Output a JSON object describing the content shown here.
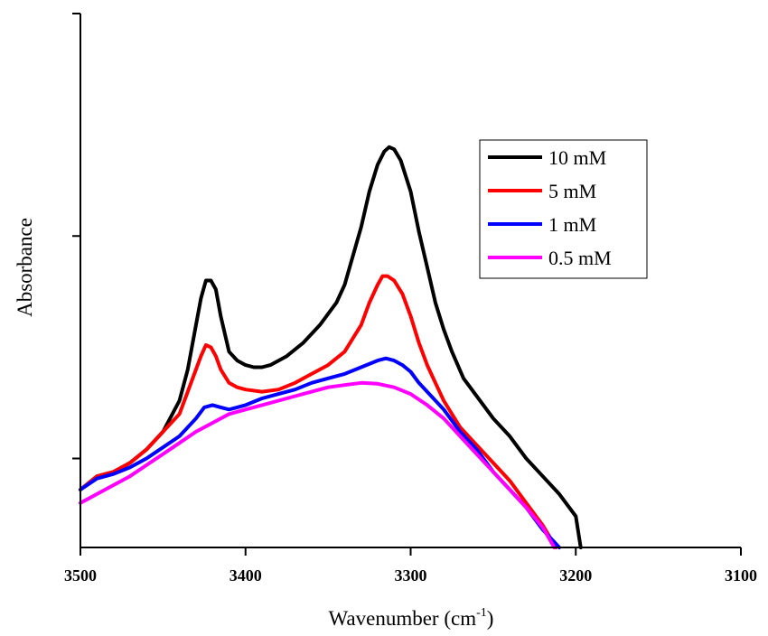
{
  "chart_data": {
    "type": "line",
    "xlabel_main": "Wavenumber (cm",
    "xlabel_sup": "-1",
    "xlabel_close": ")",
    "ylabel": "Absorbance",
    "xlim": [
      3500,
      3100
    ],
    "x_reversed": true,
    "ylim": [
      0,
      1.2
    ],
    "x_ticks": [
      "3500",
      "3400",
      "3300",
      "3200",
      "3100"
    ],
    "x_tick_values": [
      3500,
      3400,
      3300,
      3200,
      3100
    ],
    "y_tick_values": [
      0.2,
      0.7,
      1.2
    ],
    "legend_position": "top-right",
    "series": [
      {
        "name": "10 mM",
        "color": "#000000",
        "points": [
          [
            3500,
            0.13
          ],
          [
            3490,
            0.16
          ],
          [
            3480,
            0.17
          ],
          [
            3470,
            0.19
          ],
          [
            3460,
            0.22
          ],
          [
            3450,
            0.26
          ],
          [
            3440,
            0.33
          ],
          [
            3435,
            0.4
          ],
          [
            3430,
            0.5
          ],
          [
            3427,
            0.56
          ],
          [
            3424,
            0.6
          ],
          [
            3421,
            0.6
          ],
          [
            3418,
            0.58
          ],
          [
            3415,
            0.52
          ],
          [
            3410,
            0.44
          ],
          [
            3405,
            0.42
          ],
          [
            3400,
            0.41
          ],
          [
            3395,
            0.405
          ],
          [
            3390,
            0.405
          ],
          [
            3385,
            0.41
          ],
          [
            3375,
            0.43
          ],
          [
            3365,
            0.46
          ],
          [
            3355,
            0.5
          ],
          [
            3345,
            0.55
          ],
          [
            3340,
            0.59
          ],
          [
            3330,
            0.72
          ],
          [
            3325,
            0.8
          ],
          [
            3320,
            0.86
          ],
          [
            3316,
            0.89
          ],
          [
            3313,
            0.9
          ],
          [
            3310,
            0.895
          ],
          [
            3306,
            0.87
          ],
          [
            3300,
            0.8
          ],
          [
            3295,
            0.71
          ],
          [
            3290,
            0.63
          ],
          [
            3285,
            0.55
          ],
          [
            3280,
            0.49
          ],
          [
            3275,
            0.44
          ],
          [
            3268,
            0.38
          ],
          [
            3260,
            0.34
          ],
          [
            3250,
            0.29
          ],
          [
            3240,
            0.25
          ],
          [
            3230,
            0.2
          ],
          [
            3220,
            0.16
          ],
          [
            3210,
            0.12
          ],
          [
            3200,
            0.07
          ],
          [
            3197,
            0.0
          ]
        ]
      },
      {
        "name": "5 mM",
        "color": "#ff0000",
        "points": [
          [
            3500,
            0.13
          ],
          [
            3490,
            0.16
          ],
          [
            3480,
            0.17
          ],
          [
            3470,
            0.19
          ],
          [
            3460,
            0.22
          ],
          [
            3450,
            0.26
          ],
          [
            3440,
            0.3
          ],
          [
            3435,
            0.35
          ],
          [
            3430,
            0.4
          ],
          [
            3427,
            0.43
          ],
          [
            3424,
            0.455
          ],
          [
            3421,
            0.45
          ],
          [
            3418,
            0.43
          ],
          [
            3415,
            0.4
          ],
          [
            3410,
            0.37
          ],
          [
            3405,
            0.36
          ],
          [
            3400,
            0.355
          ],
          [
            3390,
            0.35
          ],
          [
            3380,
            0.355
          ],
          [
            3370,
            0.37
          ],
          [
            3360,
            0.39
          ],
          [
            3350,
            0.41
          ],
          [
            3340,
            0.44
          ],
          [
            3330,
            0.5
          ],
          [
            3325,
            0.55
          ],
          [
            3320,
            0.59
          ],
          [
            3317,
            0.61
          ],
          [
            3314,
            0.61
          ],
          [
            3310,
            0.6
          ],
          [
            3305,
            0.57
          ],
          [
            3300,
            0.52
          ],
          [
            3295,
            0.46
          ],
          [
            3290,
            0.41
          ],
          [
            3285,
            0.37
          ],
          [
            3280,
            0.33
          ],
          [
            3270,
            0.27
          ],
          [
            3260,
            0.23
          ],
          [
            3250,
            0.19
          ],
          [
            3240,
            0.15
          ],
          [
            3230,
            0.1
          ],
          [
            3220,
            0.05
          ],
          [
            3212,
            0.0
          ]
        ]
      },
      {
        "name": "1 mM",
        "color": "#0000ff",
        "points": [
          [
            3500,
            0.13
          ],
          [
            3490,
            0.155
          ],
          [
            3480,
            0.165
          ],
          [
            3470,
            0.18
          ],
          [
            3460,
            0.2
          ],
          [
            3450,
            0.225
          ],
          [
            3440,
            0.25
          ],
          [
            3430,
            0.29
          ],
          [
            3425,
            0.315
          ],
          [
            3420,
            0.32
          ],
          [
            3415,
            0.315
          ],
          [
            3410,
            0.31
          ],
          [
            3400,
            0.32
          ],
          [
            3390,
            0.335
          ],
          [
            3380,
            0.345
          ],
          [
            3370,
            0.355
          ],
          [
            3360,
            0.37
          ],
          [
            3350,
            0.38
          ],
          [
            3340,
            0.39
          ],
          [
            3330,
            0.405
          ],
          [
            3320,
            0.42
          ],
          [
            3315,
            0.425
          ],
          [
            3310,
            0.42
          ],
          [
            3305,
            0.41
          ],
          [
            3300,
            0.395
          ],
          [
            3295,
            0.37
          ],
          [
            3290,
            0.35
          ],
          [
            3280,
            0.31
          ],
          [
            3270,
            0.26
          ],
          [
            3260,
            0.22
          ],
          [
            3250,
            0.17
          ],
          [
            3240,
            0.13
          ],
          [
            3230,
            0.09
          ],
          [
            3220,
            0.04
          ],
          [
            3210,
            0.0
          ]
        ]
      },
      {
        "name": "0.5 mM",
        "color": "#ff00ff",
        "points": [
          [
            3500,
            0.1
          ],
          [
            3490,
            0.12
          ],
          [
            3480,
            0.14
          ],
          [
            3470,
            0.16
          ],
          [
            3460,
            0.185
          ],
          [
            3450,
            0.21
          ],
          [
            3440,
            0.235
          ],
          [
            3430,
            0.26
          ],
          [
            3420,
            0.28
          ],
          [
            3410,
            0.3
          ],
          [
            3400,
            0.31
          ],
          [
            3390,
            0.32
          ],
          [
            3380,
            0.33
          ],
          [
            3370,
            0.34
          ],
          [
            3360,
            0.35
          ],
          [
            3350,
            0.36
          ],
          [
            3340,
            0.365
          ],
          [
            3330,
            0.37
          ],
          [
            3320,
            0.368
          ],
          [
            3310,
            0.36
          ],
          [
            3300,
            0.345
          ],
          [
            3290,
            0.32
          ],
          [
            3280,
            0.29
          ],
          [
            3270,
            0.25
          ],
          [
            3260,
            0.21
          ],
          [
            3250,
            0.17
          ],
          [
            3240,
            0.13
          ],
          [
            3230,
            0.09
          ],
          [
            3220,
            0.045
          ],
          [
            3213,
            0.0
          ]
        ]
      }
    ]
  }
}
